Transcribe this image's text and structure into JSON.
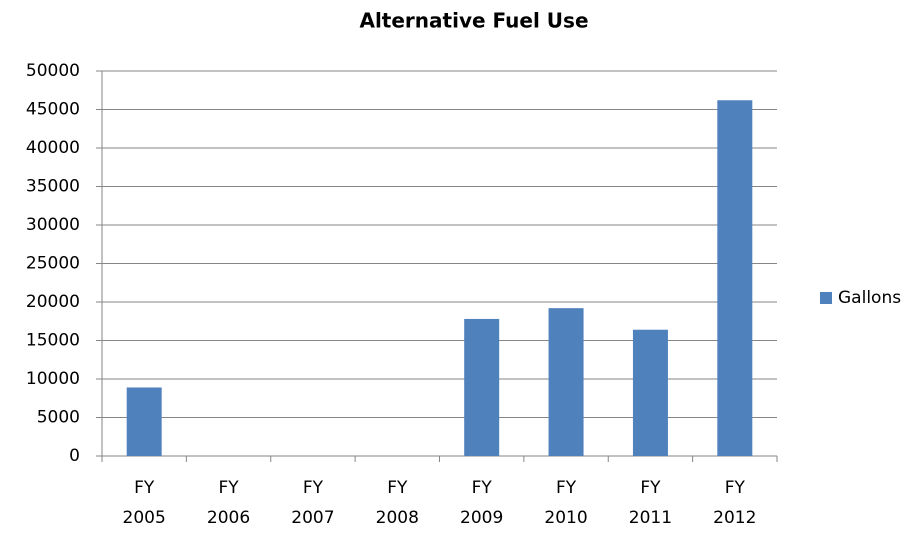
{
  "chart_data": {
    "type": "bar",
    "title": "Alternative Fuel Use",
    "categories": [
      "FY 2005",
      "FY 2006",
      "FY 2007",
      "FY 2008",
      "FY 2009",
      "FY 2010",
      "FY 2011",
      "FY 2012"
    ],
    "series": [
      {
        "name": "Gallons",
        "color": "#4f81bd",
        "values": [
          8900,
          0,
          0,
          0,
          17800,
          19200,
          16400,
          46200
        ]
      }
    ],
    "ylim": [
      0,
      50000
    ],
    "yticks": [
      0,
      5000,
      10000,
      15000,
      20000,
      25000,
      30000,
      35000,
      40000,
      45000,
      50000
    ],
    "grid": true,
    "legend": "right"
  }
}
